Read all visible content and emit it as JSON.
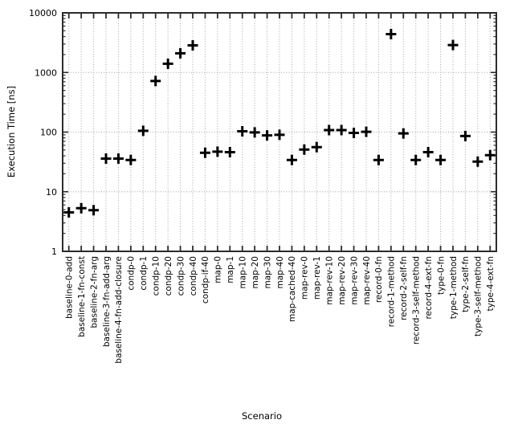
{
  "chart_data": {
    "type": "scatter",
    "title": "",
    "xlabel": "Scenario",
    "ylabel": "Execution Time [ns]",
    "y_scale": "log",
    "ylim": [
      1,
      10000
    ],
    "y_ticks": [
      1,
      10,
      100,
      1000,
      10000
    ],
    "y_tick_labels": [
      "1",
      "10",
      "100",
      "1000",
      "10000"
    ],
    "grid": true,
    "legend": "none",
    "marker": "plus",
    "marker_color": "#000000",
    "grid_color": "#a3a3a3",
    "border_color": "#2b2b2b",
    "categories": [
      "baseline-0-add",
      "baseline-1-fn-const",
      "baseline-2-fn-arg",
      "baseline-3-fn-add-arg",
      "baseline-4-fn-add-closure",
      "condp-0",
      "condp-1",
      "condp-10",
      "condp-20",
      "condp-30",
      "condp-40",
      "condp-if-40",
      "map-0",
      "map-1",
      "map-10",
      "map-20",
      "map-30",
      "map-40",
      "map-cached-40",
      "map-rev-0",
      "map-rev-1",
      "map-rev-10",
      "map-rev-20",
      "map-rev-30",
      "map-rev-40",
      "record-0-fn",
      "record-1-method",
      "record-2-self-fn",
      "record-3-self-method",
      "record-4-ext-fn",
      "type-0-fn",
      "type-1-method",
      "type-2-self-fn",
      "type-3-self-method",
      "type-4-ext-fn"
    ],
    "values": [
      4.5,
      5.3,
      4.9,
      36,
      36,
      34,
      105,
      720,
      1400,
      2100,
      2850,
      45,
      47,
      46,
      103,
      99,
      88,
      90,
      34,
      51,
      56,
      108,
      108,
      97,
      101,
      34,
      4400,
      95,
      34,
      46,
      34,
      2880,
      86,
      32,
      41
    ]
  }
}
